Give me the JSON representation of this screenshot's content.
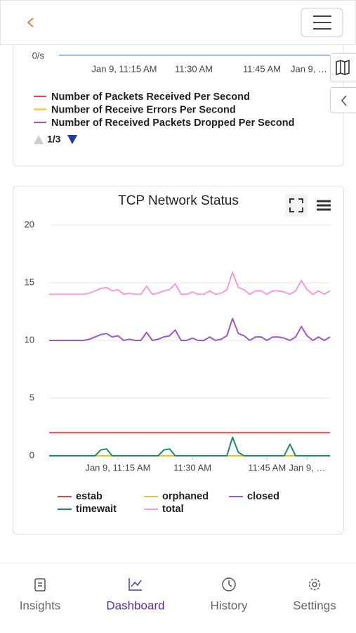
{
  "top_chart": {
    "ytick_label": "0/s",
    "xtick_labels": [
      "Jan 9, 11:15 AM",
      "11:30 AM",
      "11:45 AM",
      "Jan 9, …"
    ],
    "legend": [
      {
        "name": "Number of Packets Received Per Second",
        "color": "#e0454a"
      },
      {
        "name": "Number of Receive Errors Per Second",
        "color": "#f0c020"
      },
      {
        "name": "Number of Received Packets Dropped Per Second",
        "color": "#9b59c6"
      }
    ],
    "pager": "1/3"
  },
  "chart_data": {
    "type": "line",
    "title": "TCP Network Status",
    "xlim": [
      0,
      49
    ],
    "xticks": [
      {
        "value": 12,
        "label": "Jan 9, 11:15 AM"
      },
      {
        "value": 25,
        "label": "11:30 AM"
      },
      {
        "value": 38,
        "label": "11:45 AM"
      },
      {
        "value": 45,
        "label": "Jan 9, …"
      }
    ],
    "ylim": [
      0,
      20
    ],
    "yticks": [
      0,
      5,
      10,
      15,
      20
    ],
    "grid": true,
    "x": [
      0,
      1,
      2,
      3,
      4,
      5,
      6,
      7,
      8,
      9,
      10,
      11,
      12,
      13,
      14,
      15,
      16,
      17,
      18,
      19,
      20,
      21,
      22,
      23,
      24,
      25,
      26,
      27,
      28,
      29,
      30,
      31,
      32,
      33,
      34,
      35,
      36,
      37,
      38,
      39,
      40,
      41,
      42,
      43,
      44,
      45,
      46,
      47,
      48,
      49
    ],
    "series": [
      {
        "name": "estab",
        "color": "#e0454a",
        "values": [
          2,
          2,
          2,
          2,
          2,
          2,
          2,
          2,
          2,
          2,
          2,
          2,
          2,
          2,
          2,
          2,
          2,
          2,
          2,
          2,
          2,
          2,
          2,
          2,
          2,
          2,
          2,
          2,
          2,
          2,
          2,
          2,
          2,
          2,
          2,
          2,
          2,
          2,
          2,
          2,
          2,
          2,
          2,
          2,
          2,
          2,
          2,
          2,
          2,
          2
        ]
      },
      {
        "name": "orphaned",
        "color": "#f0c020",
        "values": [
          0,
          0,
          0,
          0,
          0,
          0,
          0,
          0,
          0,
          0,
          0,
          0,
          0,
          0,
          0,
          0,
          0,
          0,
          0,
          0,
          0,
          0,
          0,
          0,
          0,
          0,
          0,
          0,
          0,
          0,
          0,
          0,
          0,
          0,
          0,
          0,
          0,
          0,
          0,
          0,
          0,
          0,
          0,
          0,
          0,
          0,
          0,
          0,
          0,
          0
        ]
      },
      {
        "name": "closed",
        "color": "#9b59c6",
        "values": [
          10,
          10,
          10,
          10,
          10,
          10,
          10,
          10.1,
          10.3,
          10.5,
          10.6,
          10.3,
          10.4,
          10,
          10.1,
          10,
          10,
          10.7,
          10,
          10.1,
          10.3,
          10.4,
          10.9,
          10,
          10,
          10.2,
          10,
          10,
          10.3,
          10,
          10.1,
          10.4,
          11.9,
          10.6,
          10.4,
          10,
          10.3,
          10.3,
          10,
          10.3,
          10.3,
          10.2,
          10,
          10.3,
          11.2,
          10.4,
          10,
          10.3,
          10,
          10.3
        ]
      },
      {
        "name": "timewait",
        "color": "#1a8a6a",
        "values": [
          0,
          0,
          0,
          0,
          0,
          0,
          0,
          0,
          0,
          0.5,
          0.6,
          0,
          0,
          0,
          0,
          0,
          0,
          0,
          0,
          0,
          0.5,
          0.6,
          0,
          0,
          0,
          0,
          0,
          0,
          0,
          0,
          0,
          0,
          1.6,
          0.3,
          0,
          0,
          0,
          0,
          0,
          0,
          0,
          0,
          1,
          0,
          0,
          0,
          0,
          0,
          0,
          0
        ]
      },
      {
        "name": "total",
        "color": "#f79bd9",
        "values": [
          14,
          14,
          14,
          14,
          14,
          14,
          14,
          14.1,
          14.3,
          14.5,
          14.6,
          14.3,
          14.4,
          14,
          14.1,
          14,
          14,
          14.7,
          14,
          14.1,
          14.3,
          14.4,
          14.9,
          14,
          14,
          14.2,
          14,
          14,
          14.3,
          14,
          14.1,
          14.4,
          15.9,
          14.6,
          14.4,
          14,
          14.3,
          14.3,
          14,
          14.3,
          14.3,
          14.2,
          14,
          14.3,
          15.2,
          14.4,
          14,
          14.3,
          14,
          14.3
        ]
      }
    ]
  },
  "nav": [
    {
      "label": "Insights",
      "active": false
    },
    {
      "label": "Dashboard",
      "active": true
    },
    {
      "label": "History",
      "active": false
    },
    {
      "label": "Settings",
      "active": false
    }
  ]
}
